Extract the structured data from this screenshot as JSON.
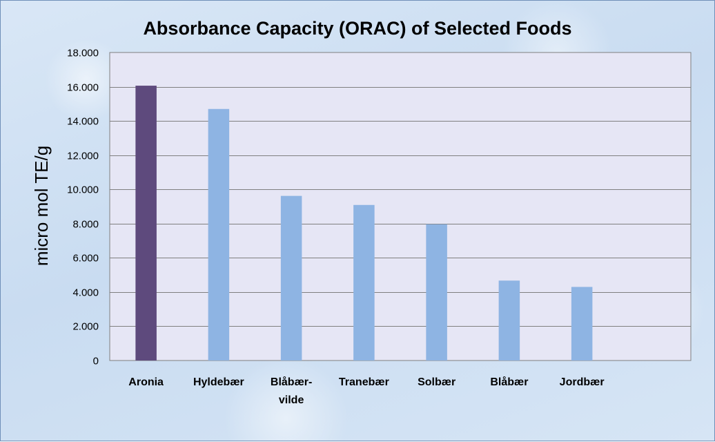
{
  "chart_data": {
    "type": "bar",
    "title": "Absorbance Capacity (ORAC) of Selected Foods",
    "xlabel": "",
    "ylabel": "micro mol TE/g",
    "categories": [
      [
        "Aronia"
      ],
      [
        "Hyldebær"
      ],
      [
        "Blåbær-",
        "vilde"
      ],
      [
        "Tranebær"
      ],
      [
        "Solbær"
      ],
      [
        "Blåbær"
      ],
      [
        "Jordbær"
      ]
    ],
    "values": [
      16060,
      14700,
      9620,
      9090,
      7960,
      4670,
      4300
    ],
    "bar_colors": [
      "#5e4a7d",
      "#8eb4e3",
      "#8eb4e3",
      "#8eb4e3",
      "#8eb4e3",
      "#8eb4e3",
      "#8eb4e3"
    ],
    "ylim": [
      0,
      18000
    ],
    "yticks": [
      {
        "value": 0,
        "label": "0"
      },
      {
        "value": 2000,
        "label": "2.000"
      },
      {
        "value": 4000,
        "label": "4.000"
      },
      {
        "value": 6000,
        "label": "6.000"
      },
      {
        "value": 8000,
        "label": "8.000"
      },
      {
        "value": 10000,
        "label": "10.000"
      },
      {
        "value": 12000,
        "label": "12.000"
      },
      {
        "value": 14000,
        "label": "14.000"
      },
      {
        "value": 16000,
        "label": "16.000"
      },
      {
        "value": 18000,
        "label": "18.000"
      }
    ],
    "category_slots": 8,
    "grid": true,
    "plot_background": "#e6e6f5",
    "gridline_color": "#7f7f7f"
  }
}
